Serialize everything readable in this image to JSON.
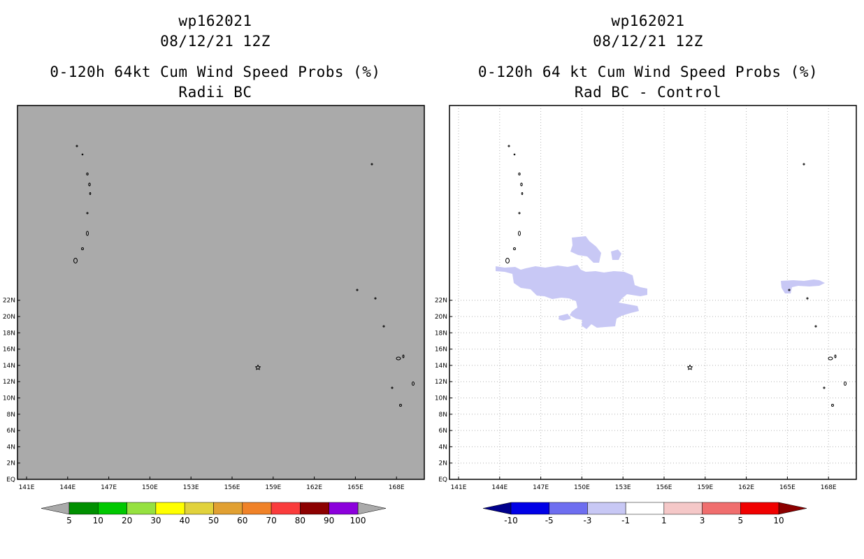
{
  "left_panel": {
    "title_line1": "wp162021",
    "title_line2": "08/12/21 12Z",
    "title_line3": "0-120h 64kt Cum Wind Speed Probs (%)",
    "title_line4": "Radii BC",
    "field_color": "#aaaaaa",
    "colorbar": {
      "colors": [
        "#008f00",
        "#00c800",
        "#96e140",
        "#ffff00",
        "#e1d23c",
        "#e1a032",
        "#f08228",
        "#fa3c3c",
        "#8c0000",
        "#8c00dc"
      ],
      "tick_labels": [
        "5",
        "10",
        "20",
        "30",
        "40",
        "50",
        "60",
        "70",
        "80",
        "90",
        "100"
      ],
      "under_color": "#aaaaaa",
      "over_color": "#aaaaaa"
    }
  },
  "right_panel": {
    "title_line1": "wp162021",
    "title_line2": "08/12/21 12Z",
    "title_line3": "0-120h 64 kt Cum Wind Speed Probs (%)",
    "title_line4": "Rad BC - Control",
    "field_color": "#c8c8f5",
    "colorbar": {
      "colors": [
        "#0000e6",
        "#6e6ef0",
        "#c8c8f5",
        "#ffffff",
        "#f5c8c8",
        "#f06e6e",
        "#f00000"
      ],
      "tick_labels": [
        "-10",
        "-5",
        "-3",
        "-1",
        "1",
        "3",
        "5",
        "10"
      ],
      "under_color": "#00008c",
      "over_color": "#8c0000"
    }
  },
  "map": {
    "lat_labels": [
      "EQ",
      "2N",
      "4N",
      "6N",
      "8N",
      "10N",
      "12N",
      "14N",
      "16N",
      "18N",
      "20N",
      "22N"
    ],
    "lon_labels": [
      "141E",
      "144E",
      "147E",
      "150E",
      "153E",
      "156E",
      "159E",
      "162E",
      "165E",
      "168E"
    ]
  }
}
